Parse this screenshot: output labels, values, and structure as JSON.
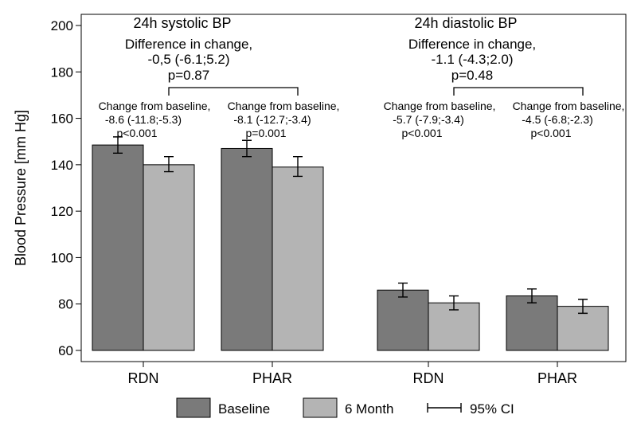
{
  "chart_data": {
    "type": "bar",
    "ylabel": "Blood Pressure [mm Hg]",
    "ylim": [
      60,
      200
    ],
    "yticks": [
      60,
      80,
      100,
      120,
      140,
      160,
      180,
      200
    ],
    "grid": false,
    "legend_position": "bottom",
    "colors": {
      "baseline": "#7a7a7a",
      "six_month": "#b4b4b4",
      "outline": "#000000"
    },
    "groups": [
      {
        "title": "24h systolic BP",
        "difference": {
          "label": "Difference in change,",
          "value": "-0,5 (-6.1;5.2)",
          "p": "p=0.87"
        },
        "categories": [
          {
            "label": "RDN",
            "baseline": 148.5,
            "baseline_ci": [
              145.0,
              152.0
            ],
            "six_month": 140.0,
            "six_month_ci": [
              137.0,
              143.5
            ],
            "change": {
              "label": "Change from baseline,",
              "value": "-8.6 (-11.8;-5.3)",
              "p": "p<0.001"
            }
          },
          {
            "label": "PHAR",
            "baseline": 147.0,
            "baseline_ci": [
              143.5,
              150.5
            ],
            "six_month": 139.0,
            "six_month_ci": [
              135.0,
              143.5
            ],
            "change": {
              "label": "Change from baseline,",
              "value": "-8.1 (-12.7;-3.4)",
              "p": "p=0.001"
            }
          }
        ]
      },
      {
        "title": "24h diastolic BP",
        "difference": {
          "label": "Difference in change,",
          "value": "-1.1 (-4.3;2.0)",
          "p": "p=0.48"
        },
        "categories": [
          {
            "label": "RDN",
            "baseline": 86.0,
            "baseline_ci": [
              83.0,
              89.0
            ],
            "six_month": 80.5,
            "six_month_ci": [
              77.5,
              83.5
            ],
            "change": {
              "label": "Change from baseline,",
              "value": "-5.7 (-7.9;-3.4)",
              "p": "p<0.001"
            }
          },
          {
            "label": "PHAR",
            "baseline": 83.5,
            "baseline_ci": [
              80.5,
              86.5
            ],
            "six_month": 79.0,
            "six_month_ci": [
              76.0,
              82.0
            ],
            "change": {
              "label": "Change from baseline,",
              "value": "-4.5 (-6.8;-2.3)",
              "p": "p<0.001"
            }
          }
        ]
      }
    ],
    "legend": [
      {
        "key": "baseline",
        "label": "Baseline"
      },
      {
        "key": "six_month",
        "label": "6 Month"
      },
      {
        "key": "ci",
        "label": "95% CI"
      }
    ]
  }
}
